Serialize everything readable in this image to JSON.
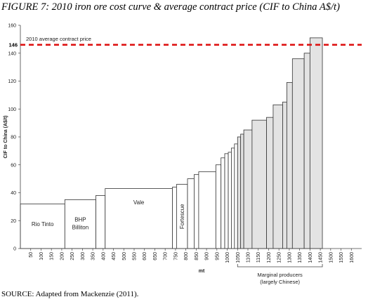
{
  "figure_title": "FIGURE 7: 2010 iron ore cost curve & average contract price (CIF to China A$/t)",
  "source": "SOURCE: Adapted from Mackenzie (2011).",
  "chart_data": {
    "type": "bar",
    "subtype": "cost-curve (variable-width bars)",
    "title": "FIGURE 7: 2010 iron ore cost curve & average contract price (CIF to China A$/t)",
    "xlabel": "mt",
    "ylabel": "CIF to China (A$/t)",
    "xlim": [
      0,
      1650
    ],
    "ylim": [
      0,
      160
    ],
    "xticks": [
      50,
      100,
      150,
      200,
      250,
      300,
      350,
      400,
      450,
      500,
      550,
      600,
      650,
      700,
      750,
      800,
      850,
      900,
      950,
      1000,
      1050,
      1100,
      1150,
      1200,
      1250,
      1300,
      1350,
      1400,
      1450,
      1500,
      1550,
      1600
    ],
    "yticks": [
      0,
      20,
      40,
      60,
      80,
      100,
      120,
      140,
      160
    ],
    "grid": false,
    "reference_line": {
      "label": "2010 average contract price",
      "value": 146,
      "value_label": "146",
      "color": "#dd1111",
      "style": "dashed"
    },
    "marginal_bracket": {
      "label_line1": "Marginal producers",
      "label_line2": "(largely Chinese)",
      "x_start": 1050,
      "x_end": 1460
    },
    "bars": [
      {
        "x0": 0,
        "x1": 215,
        "value": 32,
        "label": "Rio Tinto",
        "label2": "",
        "marginal": false
      },
      {
        "x0": 215,
        "x1": 365,
        "value": 35,
        "label": "BHP",
        "label2": "Billiton",
        "marginal": false
      },
      {
        "x0": 365,
        "x1": 410,
        "value": 38,
        "label": "",
        "label2": "",
        "marginal": false
      },
      {
        "x0": 410,
        "x1": 735,
        "value": 43,
        "label": "Vale",
        "label2": "",
        "marginal": false
      },
      {
        "x0": 735,
        "x1": 755,
        "value": 44,
        "label": "",
        "label2": "",
        "marginal": false
      },
      {
        "x0": 755,
        "x1": 808,
        "value": 46,
        "label": "Fortescue",
        "label2": "",
        "marginal": false
      },
      {
        "x0": 808,
        "x1": 840,
        "value": 50,
        "label": "",
        "label2": "",
        "marginal": false
      },
      {
        "x0": 840,
        "x1": 862,
        "value": 53,
        "label": "",
        "label2": "",
        "marginal": false
      },
      {
        "x0": 862,
        "x1": 945,
        "value": 55,
        "label": "",
        "label2": "",
        "marginal": false
      },
      {
        "x0": 945,
        "x1": 970,
        "value": 60,
        "label": "",
        "label2": "",
        "marginal": false
      },
      {
        "x0": 970,
        "x1": 988,
        "value": 65,
        "label": "",
        "label2": "",
        "marginal": false
      },
      {
        "x0": 988,
        "x1": 1005,
        "value": 68,
        "label": "",
        "label2": "",
        "marginal": false
      },
      {
        "x0": 1005,
        "x1": 1020,
        "value": 69,
        "label": "",
        "label2": "",
        "marginal": false
      },
      {
        "x0": 1020,
        "x1": 1035,
        "value": 72,
        "label": "",
        "label2": "",
        "marginal": false
      },
      {
        "x0": 1035,
        "x1": 1050,
        "value": 75,
        "label": "",
        "label2": "",
        "marginal": false
      },
      {
        "x0": 1050,
        "x1": 1065,
        "value": 80,
        "label": "",
        "label2": "",
        "marginal": true
      },
      {
        "x0": 1065,
        "x1": 1080,
        "value": 82,
        "label": "",
        "label2": "",
        "marginal": true
      },
      {
        "x0": 1080,
        "x1": 1120,
        "value": 85,
        "label": "",
        "label2": "",
        "marginal": true
      },
      {
        "x0": 1120,
        "x1": 1190,
        "value": 92,
        "label": "",
        "label2": "",
        "marginal": true
      },
      {
        "x0": 1190,
        "x1": 1222,
        "value": 94,
        "label": "",
        "label2": "",
        "marginal": true
      },
      {
        "x0": 1222,
        "x1": 1268,
        "value": 103,
        "label": "",
        "label2": "",
        "marginal": true
      },
      {
        "x0": 1268,
        "x1": 1288,
        "value": 105,
        "label": "",
        "label2": "",
        "marginal": true
      },
      {
        "x0": 1288,
        "x1": 1315,
        "value": 119,
        "label": "",
        "label2": "",
        "marginal": true
      },
      {
        "x0": 1315,
        "x1": 1372,
        "value": 136,
        "label": "",
        "label2": "",
        "marginal": true
      },
      {
        "x0": 1372,
        "x1": 1400,
        "value": 140,
        "label": "",
        "label2": "",
        "marginal": true
      },
      {
        "x0": 1400,
        "x1": 1460,
        "value": 151,
        "label": "",
        "label2": "",
        "marginal": true
      }
    ],
    "colors": {
      "bar_fill": "#ffffff",
      "marginal_fill": "#e3e3e3",
      "bar_stroke": "#333333"
    }
  }
}
